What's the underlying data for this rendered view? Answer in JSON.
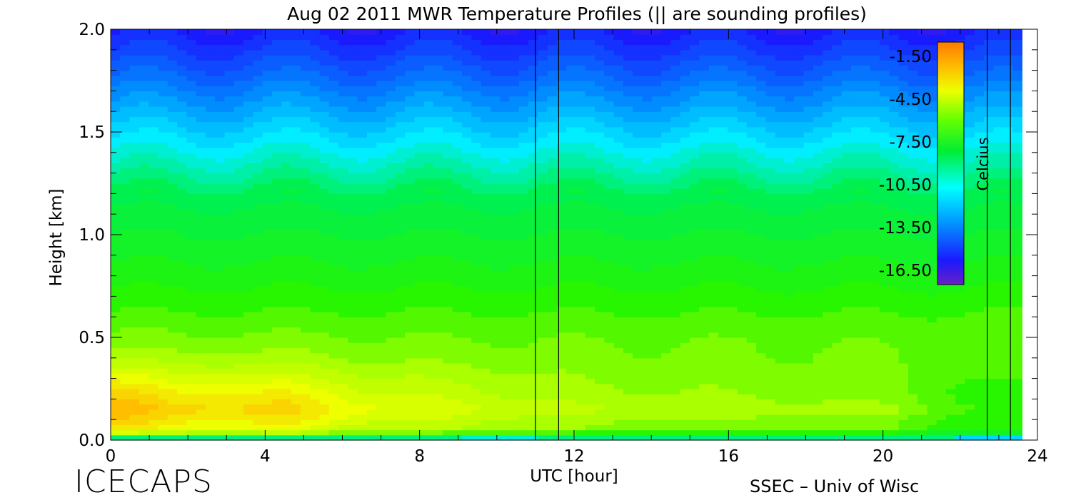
{
  "chart_data": {
    "type": "heatmap",
    "title": "Aug 02 2011 MWR Temperature Profiles (|| are sounding profiles)",
    "xlabel": "UTC [hour]",
    "ylabel": "Height [km]",
    "xlim": [
      0,
      24
    ],
    "ylim": [
      0,
      2.0
    ],
    "x_ticks": [
      "0",
      "4",
      "8",
      "12",
      "16",
      "20",
      "24"
    ],
    "y_ticks": [
      "0.0",
      "0.5",
      "1.0",
      "1.5",
      "2.0"
    ],
    "colorbar": {
      "label": "Celcius",
      "ticks": [
        "-1.50",
        "-4.50",
        "-7.50",
        "-10.50",
        "-13.50",
        "-16.50"
      ],
      "range": [
        -17.5,
        -0.5
      ]
    },
    "sounding_times_utc": [
      11.0,
      11.6,
      22.7,
      23.3
    ],
    "data_end_utc": 23.6,
    "surface_temperature_profile": {
      "x": [
        0.2,
        1.5,
        3.5,
        4.5,
        6.5,
        9.5,
        12.5,
        16.4,
        20.3,
        22.5
      ],
      "temp_near_surface": [
        -2.2,
        -3.0,
        -3.1,
        -3.0,
        -4.0,
        -4.6,
        -5.2,
        -5.4,
        -5.6,
        -6.8
      ]
    },
    "vertical_profile": {
      "height_km": [
        0.0,
        0.05,
        0.15,
        0.4,
        0.8,
        1.2,
        1.5,
        1.8,
        2.0
      ],
      "temp_typical": [
        -9.0,
        -5.0,
        -4.0,
        -5.8,
        -7.5,
        -9.0,
        -11.5,
        -14.0,
        -15.5
      ]
    }
  },
  "footer": {
    "brand": "ICECAPS",
    "credit": "SSEC – Univ of Wisc"
  }
}
